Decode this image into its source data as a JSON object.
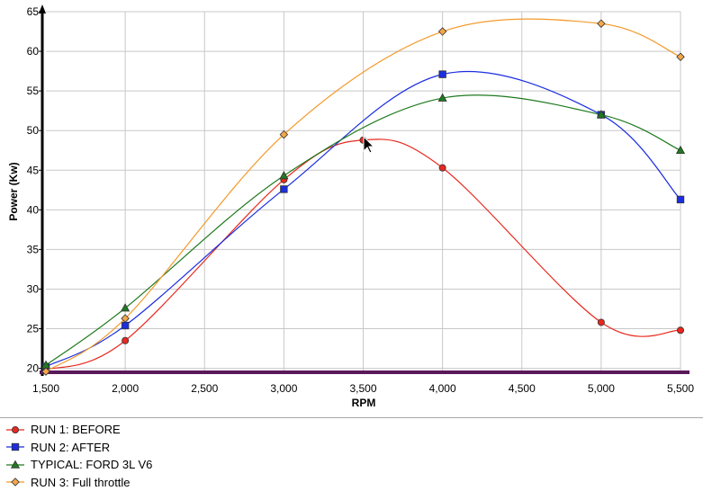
{
  "chart_data": {
    "type": "line",
    "title": "",
    "xlabel": "RPM",
    "ylabel": "Power (Kw)",
    "xlim": [
      1500,
      5500
    ],
    "ylim": [
      19.5,
      65
    ],
    "x_ticks": [
      1500,
      2000,
      2500,
      3000,
      3500,
      4000,
      4500,
      5000,
      5500
    ],
    "x_tick_labels": [
      "1,500",
      "2,000",
      "2,500",
      "3,000",
      "3,500",
      "4,000",
      "4,500",
      "5,000",
      "5,500"
    ],
    "y_ticks": [
      20,
      25,
      30,
      35,
      40,
      45,
      50,
      55,
      60,
      65
    ],
    "y_tick_labels": [
      "20",
      "25",
      "30",
      "35",
      "40",
      "45",
      "50",
      "55",
      "60",
      "65"
    ],
    "grid": true,
    "legend_position": "bottom",
    "baseline": {
      "y": 19.5,
      "color": "#5a1a5a"
    },
    "series": [
      {
        "name": "RUN 1: BEFORE",
        "color": "#e8281e",
        "marker": "circle",
        "marker_fill": "#e8281e",
        "x": [
          1500,
          2000,
          3000,
          3500,
          4000,
          5000,
          5500
        ],
        "y": [
          19.8,
          23.5,
          43.8,
          48.8,
          45.3,
          25.8,
          24.8
        ]
      },
      {
        "name": "RUN 2: AFTER",
        "color": "#1b2ee0",
        "marker": "square",
        "marker_fill": "#1b2ee0",
        "x": [
          1500,
          2000,
          3000,
          4000,
          5000,
          5500
        ],
        "y": [
          20.2,
          25.4,
          42.6,
          57.1,
          52.0,
          41.3
        ]
      },
      {
        "name": "TYPICAL: FORD 3L V6",
        "color": "#1e7a1e",
        "marker": "triangle",
        "marker_fill": "#1e7a1e",
        "x": [
          1500,
          2000,
          3000,
          4000,
          5000,
          5500
        ],
        "y": [
          20.4,
          27.6,
          44.3,
          54.1,
          52.0,
          47.5
        ]
      },
      {
        "name": "RUN 3: Full throttle",
        "color": "#f39a2c",
        "marker": "diamond",
        "marker_fill": "#f3a64a",
        "x": [
          1500,
          2000,
          3000,
          4000,
          5000,
          5500
        ],
        "y": [
          19.6,
          26.3,
          49.5,
          62.5,
          63.5,
          59.3
        ]
      }
    ]
  }
}
